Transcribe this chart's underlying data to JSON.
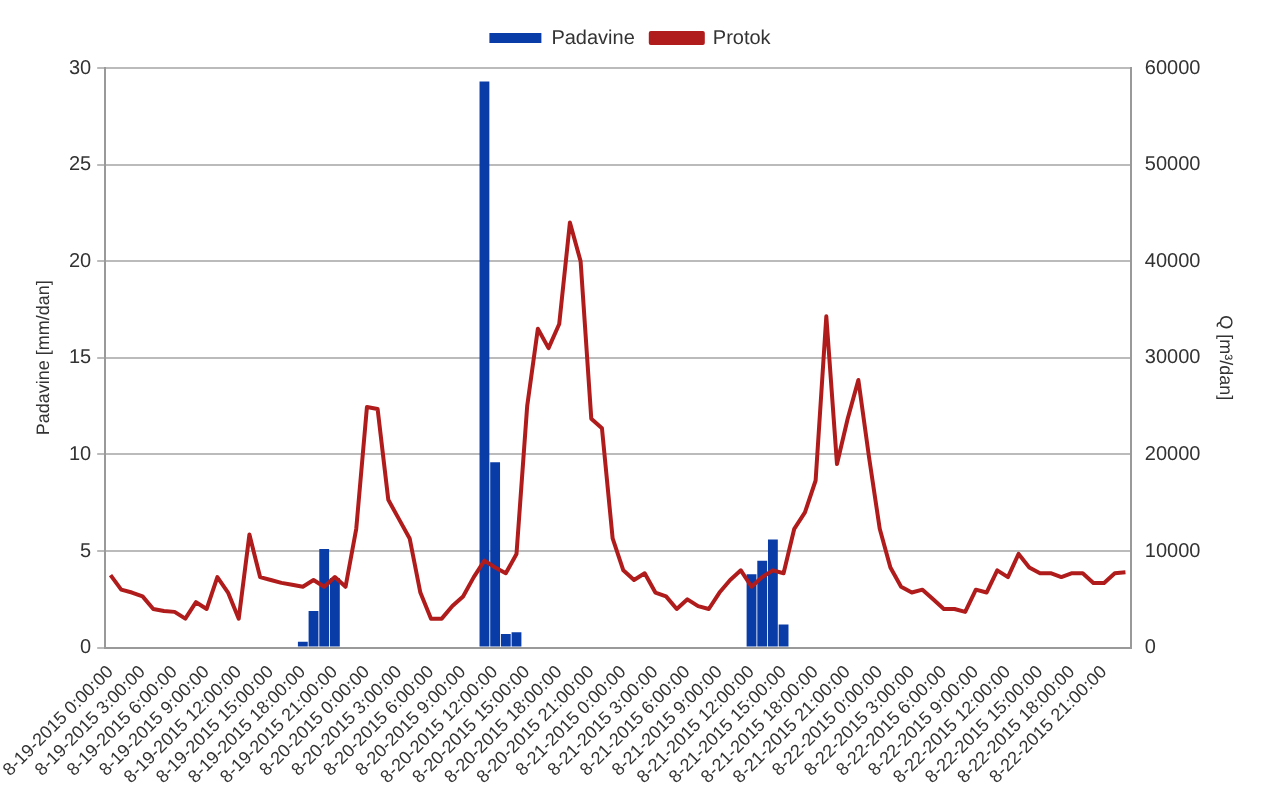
{
  "chart_data": {
    "type": "bar",
    "ylabel": "Padavine [mm/dan]",
    "y2label": "Q [m³/dan]",
    "categories": [
      "8-19-2015 0:00:00",
      null,
      null,
      "8-19-2015 3:00:00",
      null,
      null,
      "8-19-2015 6:00:00",
      null,
      null,
      "8-19-2015 9:00:00",
      null,
      null,
      "8-19-2015 12:00:00",
      null,
      null,
      "8-19-2015 15:00:00",
      null,
      null,
      "8-19-2015 18:00:00",
      null,
      null,
      "8-19-2015 21:00:00",
      null,
      null,
      "8-20-2015 0:00:00",
      null,
      null,
      "8-20-2015 3:00:00",
      null,
      null,
      "8-20-2015 6:00:00",
      null,
      null,
      "8-20-2015 9:00:00",
      null,
      null,
      "8-20-2015 12:00:00",
      null,
      null,
      "8-20-2015 15:00:00",
      null,
      null,
      "8-20-2015 18:00:00",
      null,
      null,
      "8-20-2015 21:00:00",
      null,
      null,
      "8-21-2015 0:00:00",
      null,
      null,
      "8-21-2015 3:00:00",
      null,
      null,
      "8-21-2015 6:00:00",
      null,
      null,
      "8-21-2015 9:00:00",
      null,
      null,
      "8-21-2015 12:00:00",
      null,
      null,
      "8-21-2015 15:00:00",
      null,
      null,
      "8-21-2015 18:00:00",
      null,
      null,
      "8-21-2015 21:00:00",
      null,
      null,
      "8-22-2015 0:00:00",
      null,
      null,
      "8-22-2015 3:00:00",
      null,
      null,
      "8-22-2015 6:00:00",
      null,
      null,
      "8-22-2015 9:00:00",
      null,
      null,
      "8-22-2015 12:00:00",
      null,
      null,
      "8-22-2015 15:00:00",
      null,
      null,
      "8-22-2015 18:00:00",
      null,
      null,
      "8-22-2015 21:00:00",
      null,
      null
    ],
    "series": [
      {
        "name": "Padavine",
        "type": "bar",
        "color": "#0a3ca8",
        "values": [
          null,
          null,
          null,
          null,
          null,
          null,
          null,
          null,
          null,
          null,
          null,
          null,
          null,
          null,
          null,
          null,
          null,
          null,
          0.3,
          1.9,
          5.1,
          3.6,
          null,
          null,
          null,
          null,
          null,
          null,
          null,
          null,
          null,
          null,
          null,
          null,
          null,
          29.3,
          9.6,
          0.7,
          0.8,
          null,
          null,
          null,
          null,
          null,
          null,
          null,
          null,
          null,
          null,
          null,
          null,
          null,
          null,
          null,
          null,
          null,
          null,
          null,
          null,
          null,
          3.8,
          4.5,
          5.6,
          1.2,
          null,
          null,
          null,
          null,
          null,
          null,
          null,
          null,
          null,
          null,
          null,
          null,
          null,
          null,
          null,
          null,
          null,
          null,
          null,
          null,
          null,
          null,
          null,
          null,
          null,
          null,
          null,
          null,
          null,
          null,
          null,
          null
        ]
      },
      {
        "name": "Protok",
        "type": "line",
        "axis": "y2",
        "color": "#b01c1c",
        "values": [
          7500,
          6000,
          5700,
          5300,
          4000,
          3800,
          3700,
          3000,
          4700,
          4000,
          7300,
          5700,
          3000,
          11700,
          7300,
          7000,
          6700,
          6500,
          6300,
          7000,
          6300,
          7300,
          6300,
          12300,
          24900,
          24700,
          15300,
          13300,
          11300,
          5700,
          3000,
          3000,
          4300,
          5300,
          7300,
          9000,
          8300,
          7700,
          9700,
          25000,
          33000,
          31000,
          33500,
          44000,
          40000,
          23700,
          22700,
          11300,
          8000,
          7000,
          7700,
          5700,
          5300,
          4000,
          5000,
          4300,
          4000,
          5700,
          7000,
          8000,
          6300,
          7300,
          8000,
          7700,
          12300,
          14000,
          17300,
          34300,
          19000,
          23700,
          27700,
          19700,
          12300,
          8300,
          6300,
          5700,
          6000,
          5000,
          4000,
          4000,
          3700,
          6000,
          5700,
          8000,
          7300,
          9700,
          8300,
          7700,
          7700,
          7300,
          7700,
          7700,
          6700,
          6700,
          7700,
          7800
        ]
      }
    ],
    "ylim": [
      0,
      30
    ],
    "yticks": [
      0,
      5,
      10,
      15,
      20,
      25,
      30
    ],
    "y2lim": [
      0,
      60000
    ],
    "y2ticks": [
      0,
      10000,
      20000,
      30000,
      40000,
      50000,
      60000
    ],
    "grid": "y",
    "legend": "top",
    "marker": "none",
    "line_style": "solid"
  }
}
